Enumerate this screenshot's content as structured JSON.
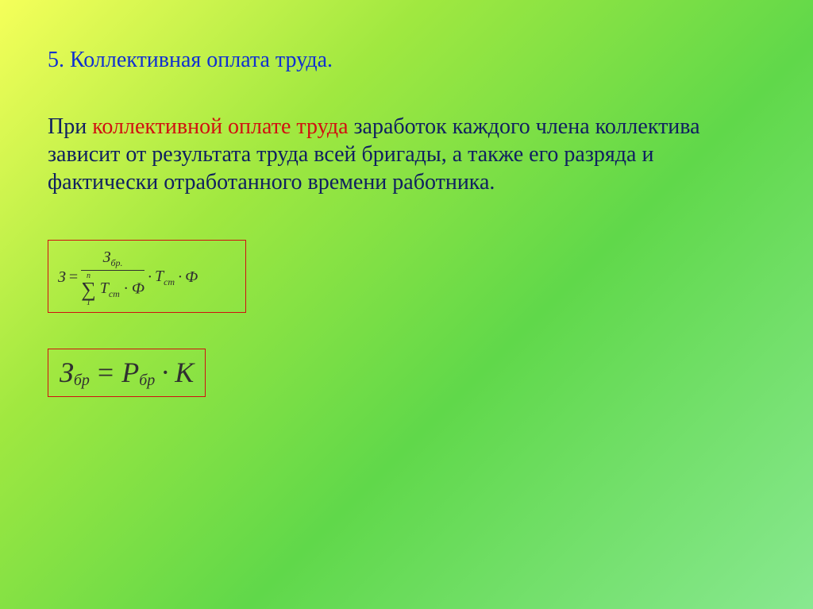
{
  "slide": {
    "title": "5. Коллективная оплата труда.",
    "paragraph": {
      "prefix": "При ",
      "highlight": "коллективной оплате труда",
      "suffix": " заработок каждого члена коллектива зависит от результата труда всей бригады, а также его разряда и фактически отработанного времени работника."
    },
    "formula1": {
      "lhs": "З",
      "eq": "=",
      "numerator": {
        "base": "З",
        "sub": "бр."
      },
      "sigma": {
        "upper": "n",
        "lower": "1"
      },
      "den_term": {
        "base": "T",
        "sub": "cm"
      },
      "den_phi": "Ф",
      "dot": "·",
      "tail_T": {
        "base": "T",
        "sub": "cm"
      },
      "tail_phi": "Ф"
    },
    "formula2": {
      "Z": "З",
      "Z_sub": "бр",
      "eq": "=",
      "P": "Р",
      "P_sub": "бр",
      "dot": "·",
      "K": "К"
    },
    "colors": {
      "title": "#1030d0",
      "body": "#102060",
      "highlight": "#d01010",
      "box_border": "#d01010",
      "formula_text": "#303030"
    }
  }
}
